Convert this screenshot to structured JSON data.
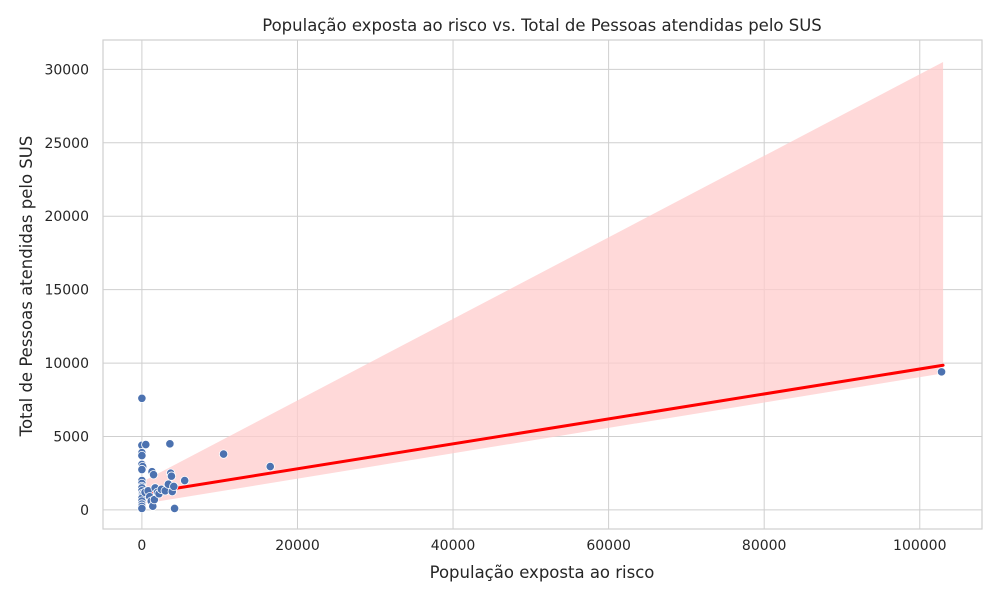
{
  "chart_data": {
    "type": "scatter",
    "title": "População exposta ao risco vs. Total de Pessoas atendidas pelo SUS",
    "xlabel": "População exposta ao risco",
    "ylabel": "Total de Pessoas atendidas pelo SUS",
    "xlim": [
      -5000,
      108000
    ],
    "ylim": [
      -1300,
      32000
    ],
    "x_ticks": [
      0,
      20000,
      40000,
      60000,
      80000,
      100000
    ],
    "y_ticks": [
      0,
      5000,
      10000,
      15000,
      20000,
      25000,
      30000
    ],
    "x_tick_labels": [
      "0",
      "20000",
      "40000",
      "60000",
      "80000",
      "100000"
    ],
    "y_tick_labels": [
      "0",
      "5000",
      "10000",
      "15000",
      "20000",
      "25000",
      "30000"
    ],
    "grid": true,
    "colors": {
      "points": "#4c72b0",
      "point_edge": "#ffffff",
      "regression_line": "#ff0000",
      "confidence_band": "#ffcccc",
      "grid": "#cfcfcf",
      "spine": "#cfcfcf"
    },
    "points": [
      {
        "x": 0,
        "y": 7600
      },
      {
        "x": 0,
        "y": 4400
      },
      {
        "x": 500,
        "y": 4450
      },
      {
        "x": 0,
        "y": 3900
      },
      {
        "x": 0,
        "y": 3700
      },
      {
        "x": 0,
        "y": 3100
      },
      {
        "x": 100,
        "y": 2950
      },
      {
        "x": 0,
        "y": 2750
      },
      {
        "x": 0,
        "y": 2000
      },
      {
        "x": 0,
        "y": 1800
      },
      {
        "x": 0,
        "y": 1600
      },
      {
        "x": 0,
        "y": 1500
      },
      {
        "x": 0,
        "y": 1300
      },
      {
        "x": 0,
        "y": 1100
      },
      {
        "x": 0,
        "y": 1000
      },
      {
        "x": 0,
        "y": 900
      },
      {
        "x": 0,
        "y": 800
      },
      {
        "x": 0,
        "y": 600
      },
      {
        "x": 0,
        "y": 400
      },
      {
        "x": 0,
        "y": 250
      },
      {
        "x": 0,
        "y": 100
      },
      {
        "x": 400,
        "y": 1200
      },
      {
        "x": 800,
        "y": 1300
      },
      {
        "x": 1000,
        "y": 900
      },
      {
        "x": 1200,
        "y": 600
      },
      {
        "x": 1300,
        "y": 2600
      },
      {
        "x": 1400,
        "y": 250
      },
      {
        "x": 1500,
        "y": 2400
      },
      {
        "x": 1600,
        "y": 700
      },
      {
        "x": 1700,
        "y": 1500
      },
      {
        "x": 2000,
        "y": 1200
      },
      {
        "x": 2200,
        "y": 1100
      },
      {
        "x": 2500,
        "y": 1400
      },
      {
        "x": 3000,
        "y": 1300
      },
      {
        "x": 3400,
        "y": 1750
      },
      {
        "x": 3600,
        "y": 4500
      },
      {
        "x": 3700,
        "y": 2500
      },
      {
        "x": 3800,
        "y": 2300
      },
      {
        "x": 3900,
        "y": 1250
      },
      {
        "x": 4100,
        "y": 1600
      },
      {
        "x": 4200,
        "y": 100
      },
      {
        "x": 5500,
        "y": 2000
      },
      {
        "x": 10500,
        "y": 3800
      },
      {
        "x": 16500,
        "y": 2950
      },
      {
        "x": 102800,
        "y": 9400
      }
    ],
    "regression_line": {
      "x": [
        0,
        103000
      ],
      "y": [
        1100,
        9850
      ]
    },
    "confidence_band": {
      "x": [
        0,
        103000
      ],
      "upper": [
        1900,
        30500
      ],
      "lower": [
        400,
        9300
      ]
    }
  }
}
